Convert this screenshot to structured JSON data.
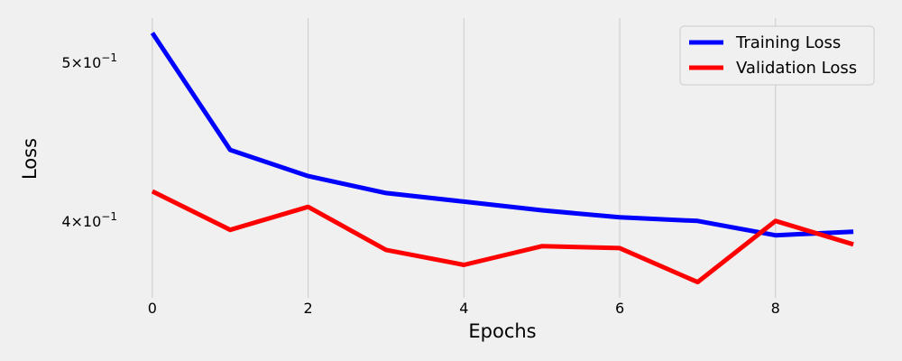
{
  "chart_data": {
    "type": "line",
    "title": "",
    "xlabel": "Epochs",
    "ylabel": "Loss",
    "x": [
      0,
      1,
      2,
      3,
      4,
      5,
      6,
      7,
      8,
      9
    ],
    "xticks": [
      0,
      2,
      4,
      6,
      8
    ],
    "xlim": [
      -0.45,
      9.45
    ],
    "yscale": "log",
    "ylim": [
      0.359,
      0.532
    ],
    "yticks": [
      {
        "value": 0.4,
        "base": "4",
        "exp": "−1"
      },
      {
        "value": 0.5,
        "base": "5",
        "exp": "−1"
      }
    ],
    "grid": "x",
    "legend_position": "top-right",
    "series": [
      {
        "name": "Training Loss",
        "color": "#0000ff",
        "values": [
          0.521,
          0.442,
          0.426,
          0.416,
          0.411,
          0.406,
          0.402,
          0.4,
          0.392,
          0.394
        ]
      },
      {
        "name": "Validation Loss",
        "color": "#ff0000",
        "values": [
          0.417,
          0.395,
          0.408,
          0.384,
          0.376,
          0.386,
          0.385,
          0.367,
          0.4,
          0.387
        ]
      }
    ]
  }
}
